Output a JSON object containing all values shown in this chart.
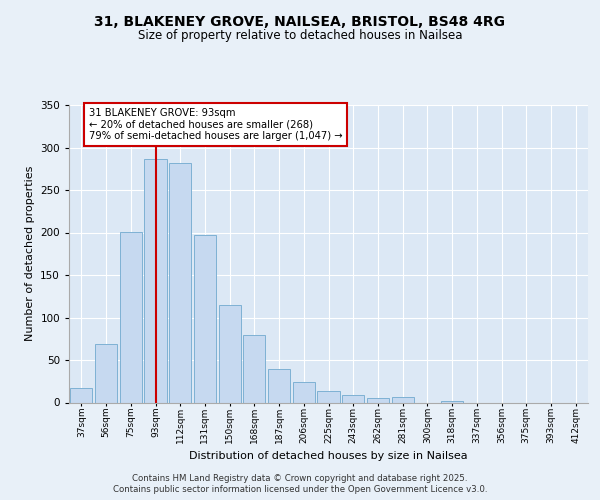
{
  "title_line1": "31, BLAKENEY GROVE, NAILSEA, BRISTOL, BS48 4RG",
  "title_line2": "Size of property relative to detached houses in Nailsea",
  "xlabel": "Distribution of detached houses by size in Nailsea",
  "ylabel": "Number of detached properties",
  "bar_labels": [
    "37sqm",
    "56sqm",
    "75sqm",
    "93sqm",
    "112sqm",
    "131sqm",
    "150sqm",
    "168sqm",
    "187sqm",
    "206sqm",
    "225sqm",
    "243sqm",
    "262sqm",
    "281sqm",
    "300sqm",
    "318sqm",
    "337sqm",
    "356sqm",
    "375sqm",
    "393sqm",
    "412sqm"
  ],
  "bar_values": [
    17,
    69,
    201,
    286,
    282,
    197,
    115,
    79,
    39,
    24,
    14,
    9,
    5,
    7,
    0,
    2,
    0,
    0,
    0,
    0,
    0
  ],
  "bar_color": "#c6d9f0",
  "bar_edge_color": "#7eb1d4",
  "vline_x": 3,
  "vline_color": "#cc0000",
  "annotation_title": "31 BLAKENEY GROVE: 93sqm",
  "annotation_line2": "← 20% of detached houses are smaller (268)",
  "annotation_line3": "79% of semi-detached houses are larger (1,047) →",
  "annotation_box_color": "#ffffff",
  "annotation_box_edge": "#cc0000",
  "ylim": [
    0,
    350
  ],
  "yticks": [
    0,
    50,
    100,
    150,
    200,
    250,
    300,
    350
  ],
  "footer_line1": "Contains HM Land Registry data © Crown copyright and database right 2025.",
  "footer_line2": "Contains public sector information licensed under the Open Government Licence v3.0.",
  "bg_color": "#e8f0f8",
  "plot_bg_color": "#dce8f5"
}
